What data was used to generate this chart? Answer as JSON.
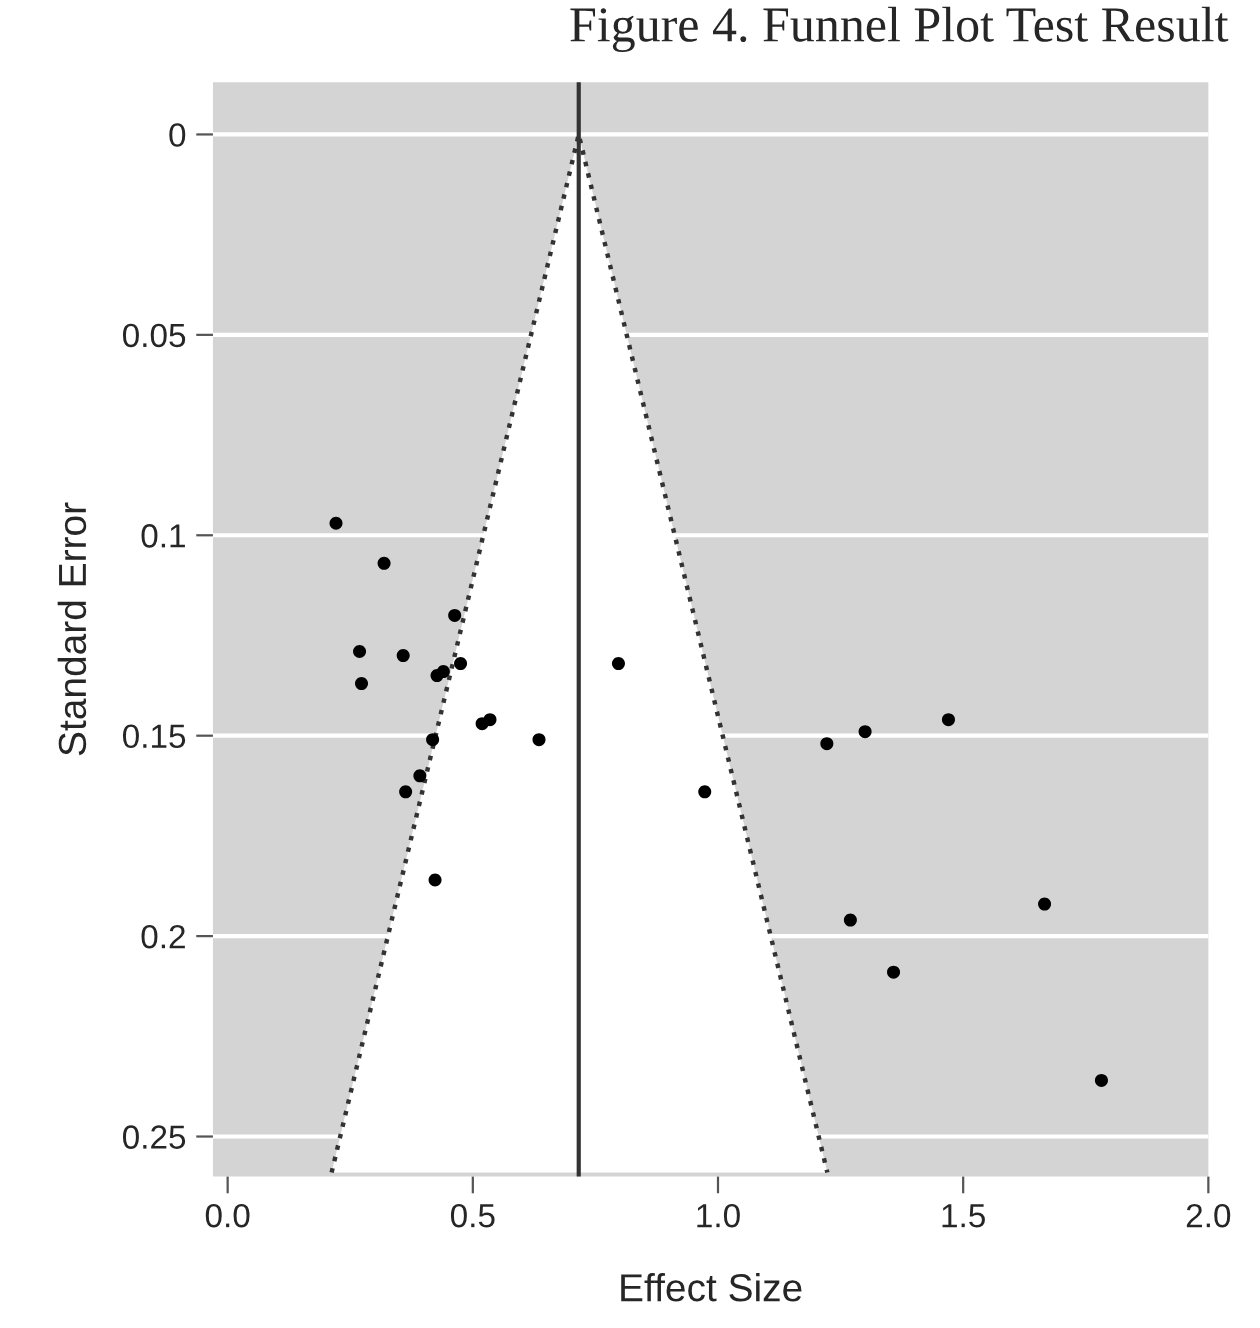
{
  "chart_data": {
    "type": "scatter",
    "title": "Figure 4. Funnel Plot Test Result",
    "xlabel": "Effect Size",
    "ylabel": "Standard Error",
    "series": [
      {
        "color": "#000000",
        "marker": "circle",
        "x": [
          0.221,
          0.319,
          0.463,
          0.269,
          0.358,
          0.475,
          0.427,
          0.44,
          0.273,
          0.519,
          0.535,
          0.418,
          0.635,
          0.392,
          0.363,
          0.423,
          0.797,
          0.973,
          1.222,
          1.3,
          1.47,
          1.666,
          1.27,
          1.358,
          1.782
        ],
        "values": [
          0.097,
          0.107,
          0.12,
          0.129,
          0.13,
          0.132,
          0.135,
          0.134,
          0.137,
          0.147,
          0.146,
          0.151,
          0.151,
          0.16,
          0.164,
          0.186,
          0.132,
          0.164,
          0.152,
          0.149,
          0.146,
          0.192,
          0.196,
          0.209,
          0.236
        ]
      },
      {
        "type": "line",
        "color": "#333333",
        "line_style": "dotted",
        "x": [
          0.212,
          0.716,
          1.223
        ],
        "values": [
          0.259,
          0,
          0.259
        ]
      }
    ],
    "ref_lines": [
      {
        "axis": "x",
        "value": 0.716,
        "color": "#333333",
        "line_style": "solid"
      }
    ],
    "xlim": [
      -0.03,
      2.0
    ],
    "ylim": [
      0.26,
      -0.013
    ],
    "xticks": [
      {
        "value": 0,
        "label": "0.0"
      },
      0.5,
      {
        "value": 1,
        "label": "1.0"
      },
      1.5,
      {
        "value": 2,
        "label": "2.0"
      }
    ],
    "yticks": [
      0,
      0.05,
      0.1,
      0.15,
      0.2,
      0.25
    ],
    "grid": "y"
  }
}
